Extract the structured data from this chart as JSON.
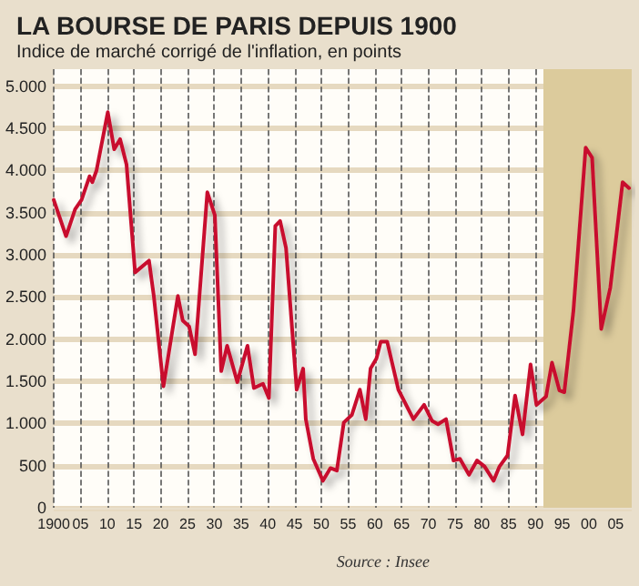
{
  "chart_data": {
    "type": "line",
    "title": "LA BOURSE DE PARIS DEPUIS 1900",
    "subtitle": "Indice de marché corrigé de l'inflation, en points",
    "annotations": [
      "Source : Insee"
    ],
    "x": [
      1900,
      1902.3,
      1904,
      1905.2,
      1906.7,
      1907.2,
      1908,
      1910.1,
      1911.3,
      1912.4,
      1913.6,
      1915.2,
      1917.8,
      1918.7,
      1920.5,
      1923.2,
      1924.1,
      1925.3,
      1926.4,
      1928.7,
      1930.1,
      1931.3,
      1932.4,
      1934.3,
      1936.2,
      1937.4,
      1939.1,
      1940.2,
      1941.4,
      1942.3,
      1943.4,
      1945.4,
      1946.6,
      1947.1,
      1948.5,
      1950.3,
      1951.7,
      1952.9,
      1954.2,
      1955.7,
      1957.2,
      1958.3,
      1959.2,
      1960.3,
      1961.1,
      1962.3,
      1964.4,
      1967.2,
      1969.2,
      1970.7,
      1971.8,
      1973.3,
      1974.7,
      1975.9,
      1977.6,
      1979.1,
      1980.5,
      1982.2,
      1983.3,
      1984.8,
      1986.2,
      1987.6,
      1989.1,
      1990.2,
      1992,
      1993.1,
      1994.5,
      1995.4,
      1997.1,
      1999.4,
      2000.6,
      2002.3,
      2004,
      2006.3,
      2007.5
    ],
    "series": [
      {
        "color": "#c8102e",
        "values": [
          3650,
          3220,
          3540,
          3650,
          3930,
          3860,
          4000,
          4690,
          4250,
          4370,
          4070,
          2790,
          2930,
          2510,
          1440,
          2510,
          2220,
          2150,
          1820,
          3740,
          3470,
          1620,
          1920,
          1490,
          1920,
          1420,
          1470,
          1300,
          3340,
          3400,
          3080,
          1400,
          1650,
          1050,
          580,
          320,
          470,
          440,
          1010,
          1100,
          1400,
          1050,
          1650,
          1770,
          1970,
          1970,
          1400,
          1050,
          1220,
          1030,
          990,
          1050,
          560,
          580,
          390,
          560,
          490,
          320,
          490,
          620,
          1330,
          870,
          1700,
          1220,
          1320,
          1720,
          1390,
          1370,
          2330,
          4270,
          4150,
          2120,
          2610,
          3860,
          3790
        ]
      }
    ],
    "xlim": [
      1900,
      2008
    ],
    "xticks": [
      {
        "value": 1900,
        "label": "1900"
      },
      {
        "value": 1905,
        "label": "05"
      },
      {
        "value": 1910,
        "label": "10"
      },
      {
        "value": 1915,
        "label": "15"
      },
      {
        "value": 1920,
        "label": "20"
      },
      {
        "value": 1925,
        "label": "25"
      },
      {
        "value": 1930,
        "label": "30"
      },
      {
        "value": 1935,
        "label": "35"
      },
      {
        "value": 1940,
        "label": "40"
      },
      {
        "value": 1945,
        "label": "45"
      },
      {
        "value": 1950,
        "label": "50"
      },
      {
        "value": 1955,
        "label": "55"
      },
      {
        "value": 1960,
        "label": "60"
      },
      {
        "value": 1965,
        "label": "65"
      },
      {
        "value": 1970,
        "label": "70"
      },
      {
        "value": 1975,
        "label": "75"
      },
      {
        "value": 1980,
        "label": "80"
      },
      {
        "value": 1985,
        "label": "85"
      },
      {
        "value": 1990,
        "label": "90"
      },
      {
        "value": 1995,
        "label": "95"
      },
      {
        "value": 2000,
        "label": "00"
      },
      {
        "value": 2005,
        "label": "05"
      }
    ],
    "ylim": [
      0,
      5200
    ],
    "yticks": [
      0,
      500,
      {
        "value": 1000,
        "label": "1.000"
      },
      {
        "value": 1500,
        "label": "1.500"
      },
      {
        "value": 2000,
        "label": "2.000"
      },
      {
        "value": 2500,
        "label": "2.500"
      },
      {
        "value": 3000,
        "label": "3.000"
      },
      {
        "value": 3500,
        "label": "3.500"
      },
      {
        "value": 4000,
        "label": "4.000"
      },
      {
        "value": 4500,
        "label": "4.500"
      },
      {
        "value": 5000,
        "label": "5.000"
      }
    ],
    "bands": [
      {
        "axis": "x",
        "from": 1991.5,
        "to": 2008,
        "color": "#dccb9c"
      }
    ],
    "grid": true,
    "marker": "none",
    "line_style": "solid"
  }
}
